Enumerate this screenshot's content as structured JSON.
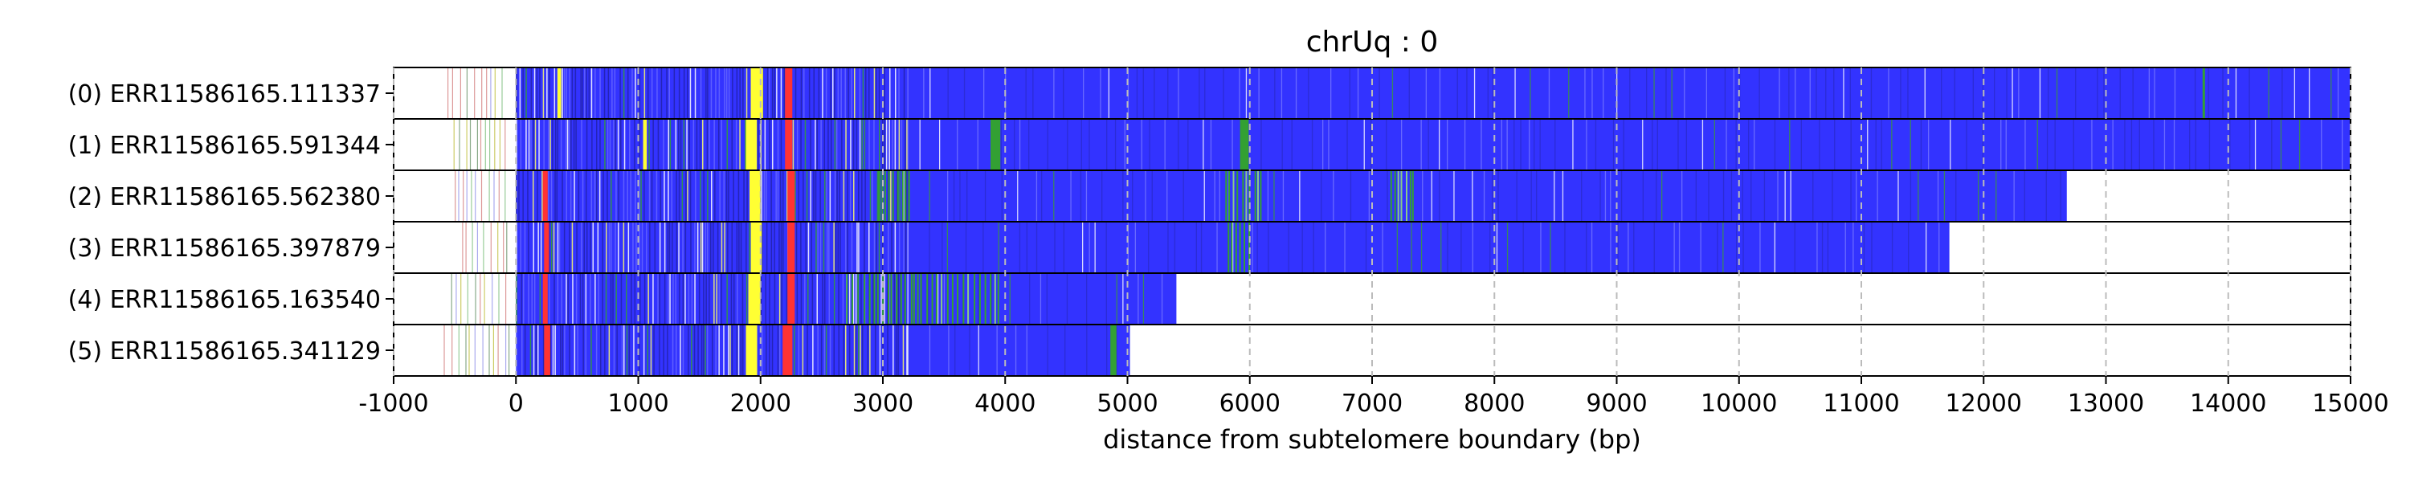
{
  "chart_data": {
    "type": "heatmap",
    "title": "chrUq : 0",
    "xlabel": "distance from subtelomere boundary (bp)",
    "ylabel": "",
    "xlim": [
      -1000,
      15000
    ],
    "xticks": [
      -1000,
      0,
      1000,
      2000,
      3000,
      4000,
      5000,
      6000,
      7000,
      8000,
      9000,
      10000,
      11000,
      12000,
      13000,
      14000,
      15000
    ],
    "grid": "x-dashed",
    "colors": {
      "blue": "#3333ff",
      "green": "#33a033",
      "yellow": "#ffff33",
      "red": "#ff3333",
      "grid": "#bbbbbb"
    },
    "reads": [
      {
        "label": "(0) ERR11586165.111337",
        "start": -560,
        "end": 15000,
        "features": [
          {
            "color": "red",
            "from": 2200,
            "to": 2260
          },
          {
            "color": "yellow",
            "from": 1920,
            "to": 2020
          },
          {
            "color": "yellow",
            "from": 340,
            "to": 370
          },
          {
            "color": "green",
            "from": 13790,
            "to": 13810
          }
        ]
      },
      {
        "label": "(1) ERR11586165.591344",
        "start": -510,
        "end": 15000,
        "features": [
          {
            "color": "red",
            "from": 2200,
            "to": 2260
          },
          {
            "color": "yellow",
            "from": 1880,
            "to": 1970
          },
          {
            "color": "yellow",
            "from": 1040,
            "to": 1070
          },
          {
            "color": "green",
            "from": 3880,
            "to": 3960
          },
          {
            "color": "green",
            "from": 5920,
            "to": 5990
          }
        ]
      },
      {
        "label": "(2) ERR11586165.562380",
        "start": -500,
        "end": 12680,
        "features": [
          {
            "color": "red",
            "from": 220,
            "to": 260
          },
          {
            "color": "yellow",
            "from": 1910,
            "to": 2000
          },
          {
            "color": "red",
            "from": 2220,
            "to": 2280
          },
          {
            "color": "green",
            "from": 2960,
            "to": 3240
          },
          {
            "color": "green",
            "from": 5800,
            "to": 6100
          },
          {
            "color": "green",
            "from": 7150,
            "to": 7330
          }
        ]
      },
      {
        "label": "(3) ERR11586165.397879",
        "start": -440,
        "end": 11720,
        "features": [
          {
            "color": "red",
            "from": 230,
            "to": 270
          },
          {
            "color": "yellow",
            "from": 1920,
            "to": 2010
          },
          {
            "color": "red",
            "from": 2220,
            "to": 2280
          },
          {
            "color": "green",
            "from": 5820,
            "to": 5990
          }
        ]
      },
      {
        "label": "(4) ERR11586165.163540",
        "start": -530,
        "end": 5400,
        "features": [
          {
            "color": "red",
            "from": 220,
            "to": 260
          },
          {
            "color": "yellow",
            "from": 1900,
            "to": 2000
          },
          {
            "color": "red",
            "from": 2220,
            "to": 2280
          },
          {
            "color": "green",
            "from": 2700,
            "to": 3960
          }
        ]
      },
      {
        "label": "(5) ERR11586165.341129",
        "start": -590,
        "end": 5020,
        "features": [
          {
            "color": "red",
            "from": 230,
            "to": 280
          },
          {
            "color": "yellow",
            "from": 1880,
            "to": 1970
          },
          {
            "color": "red",
            "from": 2180,
            "to": 2260
          },
          {
            "color": "green",
            "from": 4860,
            "to": 4910
          }
        ]
      }
    ]
  }
}
